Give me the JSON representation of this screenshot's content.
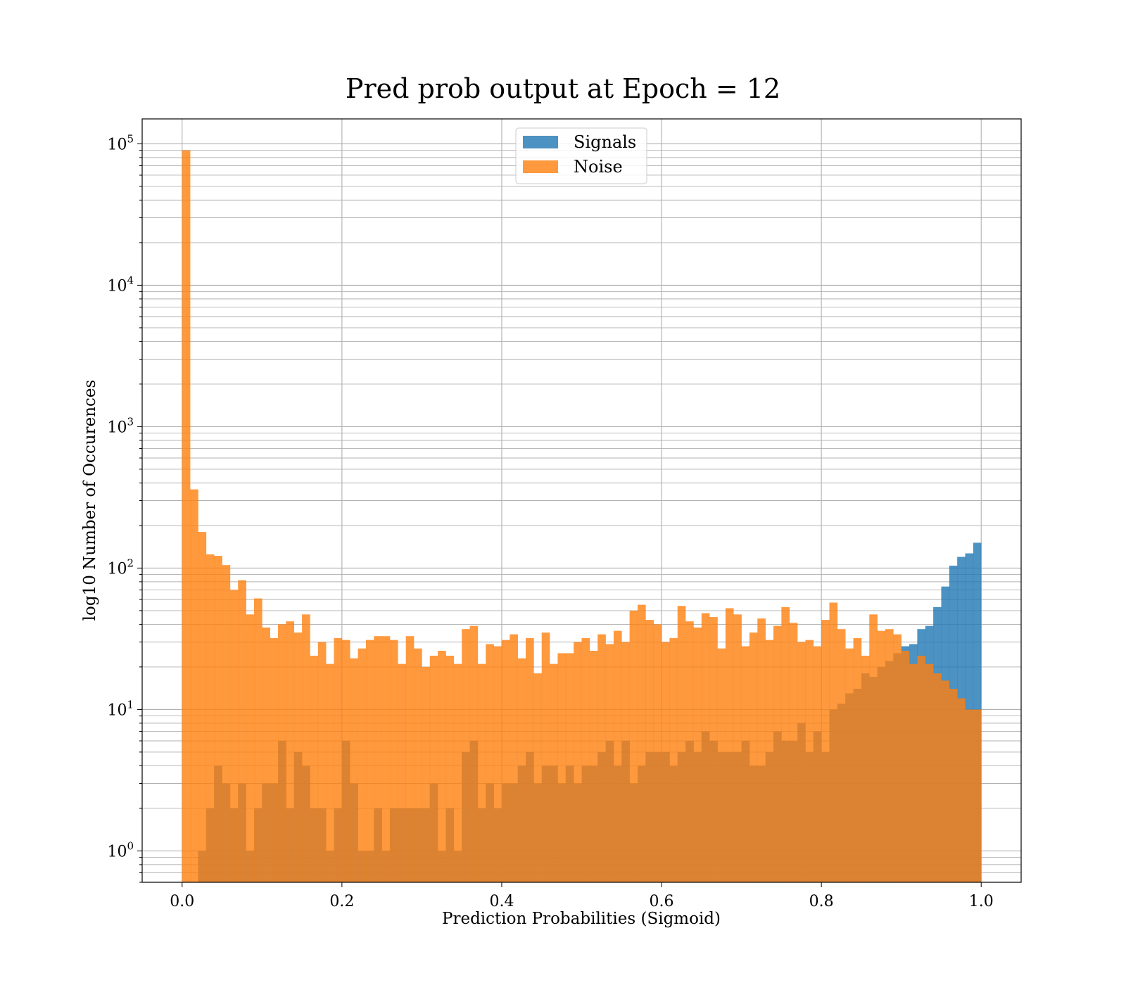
{
  "chart_data": {
    "type": "bar",
    "title": "Pred prob output at Epoch = 12",
    "xlabel": "Prediction Probabilities (Sigmoid)",
    "ylabel": "log10 Number of Occurences",
    "xlim": [
      -0.05,
      1.05
    ],
    "ylim": [
      0.6,
      150000
    ],
    "yscale": "log",
    "grid": true,
    "legend_position": "upper center",
    "x_ticks": [
      "0.0",
      "0.2",
      "0.4",
      "0.6",
      "0.8",
      "1.0"
    ],
    "y_ticks": [
      {
        "base": "10",
        "exp": "0",
        "value": 1
      },
      {
        "base": "10",
        "exp": "1",
        "value": 10
      },
      {
        "base": "10",
        "exp": "2",
        "value": 100
      },
      {
        "base": "10",
        "exp": "3",
        "value": 1000
      },
      {
        "base": "10",
        "exp": "4",
        "value": 10000
      },
      {
        "base": "10",
        "exp": "5",
        "value": 100000
      }
    ],
    "bins": 100,
    "bin_range": [
      0,
      1
    ],
    "series": [
      {
        "name": "Signals",
        "color": "#1f77b4",
        "values": [
          0,
          0,
          1,
          2,
          4,
          3,
          2,
          3,
          1,
          2,
          3,
          3,
          6,
          2,
          5,
          4,
          2,
          2,
          1,
          2,
          6,
          3,
          1,
          1,
          2,
          1,
          2,
          2,
          2,
          2,
          2,
          3,
          1,
          2,
          1,
          5,
          6,
          2,
          3,
          2,
          3,
          3,
          4,
          5,
          3,
          4,
          4,
          3,
          4,
          3,
          4,
          4,
          5,
          6,
          4,
          6,
          3,
          4,
          5,
          5,
          5,
          4,
          5,
          6,
          5,
          7,
          6,
          5,
          5,
          5,
          6,
          4,
          4,
          5,
          7,
          6,
          6,
          8,
          5,
          7,
          5,
          10,
          11,
          13,
          14,
          18,
          17,
          20,
          22,
          25,
          28,
          29,
          37,
          39,
          53,
          74,
          104,
          120,
          127,
          151
        ]
      },
      {
        "name": "Noise",
        "color": "#ff7f0e",
        "values": [
          90000,
          360,
          180,
          125,
          122,
          105,
          70,
          82,
          47,
          61,
          38,
          32,
          40,
          42,
          35,
          47,
          24,
          30,
          21,
          32,
          31,
          23,
          27,
          31,
          33,
          33,
          31,
          21,
          33,
          27,
          20,
          24,
          26,
          24,
          21,
          37,
          39,
          21,
          29,
          28,
          31,
          34,
          23,
          32,
          18,
          35,
          21,
          25,
          25,
          30,
          32,
          26,
          34,
          29,
          36,
          30,
          50,
          55,
          43,
          40,
          30,
          32,
          54,
          42,
          38,
          48,
          45,
          27,
          52,
          47,
          28,
          35,
          44,
          31,
          39,
          53,
          41,
          30,
          31,
          28,
          43,
          57,
          37,
          27,
          32,
          24,
          47,
          36,
          37,
          34,
          26,
          21,
          24,
          21,
          18,
          16,
          14,
          12,
          10,
          10
        ]
      }
    ],
    "signal_values_high": [
      0,
      0,
      0,
      0,
      0,
      0,
      0,
      0,
      0,
      0,
      0,
      0,
      0,
      0,
      0,
      0,
      0,
      0,
      0,
      0,
      0,
      0,
      0,
      0,
      0,
      0,
      0,
      0,
      0,
      0,
      0,
      0,
      0,
      0,
      0,
      0,
      0,
      0,
      0,
      0,
      0,
      0,
      0,
      0,
      0,
      0,
      0,
      0,
      0,
      0,
      0,
      0,
      0,
      0,
      0,
      0,
      0,
      0,
      0,
      0,
      0,
      0,
      0,
      0,
      0,
      0,
      0,
      0,
      0,
      0,
      0,
      0,
      0,
      0,
      0,
      0,
      0,
      0,
      0,
      0,
      0,
      0,
      0,
      0,
      0,
      0,
      0,
      0,
      0,
      0,
      0,
      0,
      0,
      0,
      0,
      0,
      0,
      0,
      0,
      0
    ]
  }
}
